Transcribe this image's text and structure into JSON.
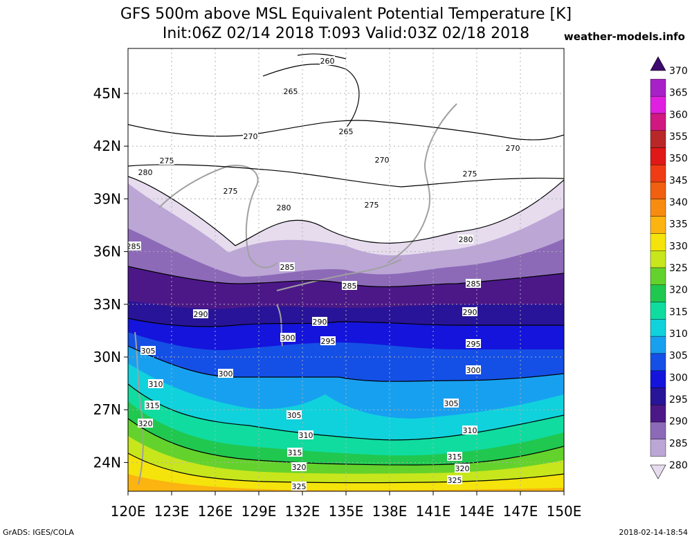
{
  "header": {
    "title_line1": "GFS 500m above MSL Equivalent Potential Temperature [K]",
    "title_line2": "Init:06Z 02/14 2018 T:093 Valid:03Z 02/18 2018",
    "credit": "weather-models.info"
  },
  "footer": {
    "left": "GrADS: IGES/COLA",
    "right": "2018-02-14-18:54"
  },
  "axes": {
    "lat_labels": [
      "45N",
      "42N",
      "39N",
      "36N",
      "33N",
      "30N",
      "27N",
      "24N"
    ],
    "lon_labels": [
      "120E",
      "123E",
      "126E",
      "129E",
      "132E",
      "135E",
      "138E",
      "141E",
      "144E",
      "147E",
      "150E"
    ]
  },
  "colorbar": {
    "labels": [
      "370",
      "365",
      "360",
      "355",
      "350",
      "345",
      "340",
      "335",
      "330",
      "325",
      "320",
      "315",
      "310",
      "305",
      "300",
      "295",
      "290",
      "285",
      "280"
    ],
    "colors": [
      "#3e0a6e",
      "#a820c8",
      "#e020e0",
      "#d01880",
      "#b82828",
      "#e01818",
      "#f03c14",
      "#f06010",
      "#f88c10",
      "#fcb410",
      "#f4e40c",
      "#c8e61c",
      "#64d22c",
      "#20c850",
      "#10dca0",
      "#10d2dc",
      "#18a0f0",
      "#1450e6",
      "#1414dc",
      "#281498",
      "#4c1888",
      "#8c6ab8",
      "#bca6d6",
      "#e6dcee"
    ]
  },
  "contour_labels": [
    "260",
    "265",
    "265",
    "270",
    "270",
    "270",
    "275",
    "275",
    "275",
    "275",
    "280",
    "280",
    "280",
    "285",
    "285",
    "285",
    "285",
    "290",
    "290",
    "290",
    "295",
    "295",
    "300",
    "300",
    "300",
    "305",
    "305",
    "305",
    "310",
    "310",
    "310",
    "315",
    "315",
    "315",
    "320",
    "320",
    "320",
    "325",
    "325"
  ],
  "colors": {
    "c280": "#e6dcee",
    "c285": "#bca6d6",
    "c288": "#8c6ab8",
    "c290": "#4c1888",
    "c293": "#281498",
    "c295": "#1414dc",
    "c298": "#1450e6",
    "c300": "#18a0f0",
    "c303": "#10d2dc",
    "c305": "#10dca0",
    "c308": "#20c850",
    "c310": "#64d22c",
    "c313": "#c8e61c",
    "c315": "#f4e40c",
    "c318": "#fcb410",
    "land": "#a0a0a0"
  }
}
